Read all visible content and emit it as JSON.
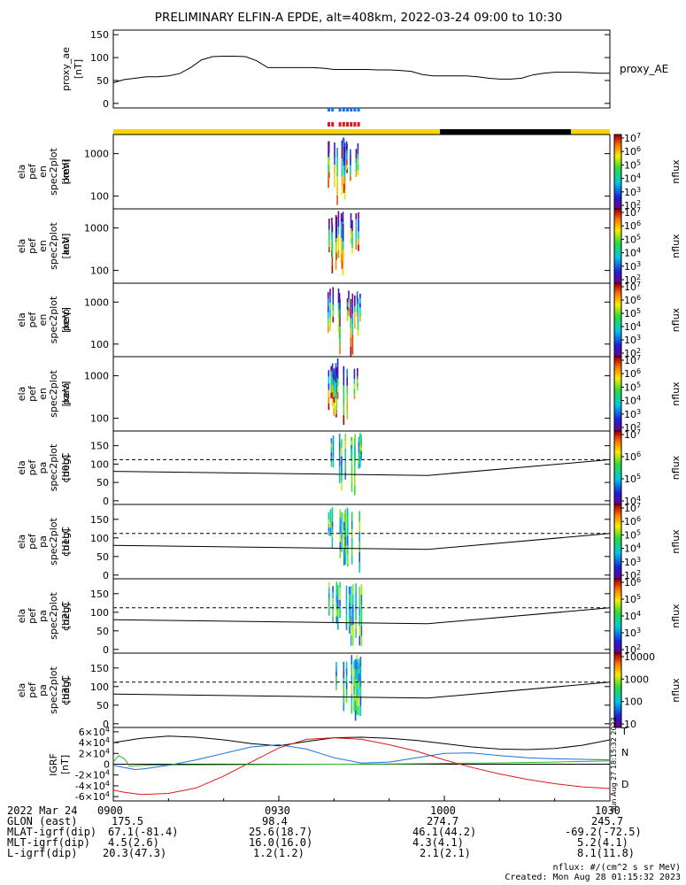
{
  "title": "PRELIMINARY ELFIN-A EPDE, alt=408km, 2022-03-24 09:00 to 10:30",
  "colors": {
    "black": "#000000",
    "yellow": "#f5d800",
    "blue": "#1e6fe0",
    "red": "#e01818",
    "green": "#22bb22",
    "ae": "#000000"
  },
  "chart_data": [
    {
      "type": "line",
      "name": "proxy_ae",
      "ylabel": "proxy_ae [nT]",
      "legend": "proxy_AE",
      "ylim": [
        -10,
        160
      ],
      "yticks": [
        "0",
        "50",
        "100",
        "150"
      ],
      "x": [
        0,
        2,
        4,
        6,
        8,
        10,
        12,
        14,
        16,
        18,
        20,
        22,
        24,
        26,
        28,
        30,
        32,
        34,
        36,
        38,
        40,
        42,
        44,
        46,
        48,
        50,
        52,
        54,
        56,
        58,
        60,
        62,
        64,
        66,
        68,
        70,
        72,
        74,
        76,
        78,
        80,
        82,
        84,
        86,
        88,
        90
      ],
      "y": [
        45,
        52,
        55,
        58,
        58,
        60,
        65,
        78,
        95,
        102,
        103,
        103,
        102,
        93,
        78,
        78,
        78,
        78,
        78,
        77,
        74,
        74,
        74,
        74,
        73,
        73,
        72,
        70,
        63,
        60,
        60,
        60,
        60,
        58,
        55,
        53,
        53,
        55,
        62,
        66,
        68,
        68,
        68,
        67,
        66,
        66
      ]
    },
    {
      "type": "heatmap",
      "name": "ela_pef_en_spec2plot_omni",
      "ylabel": "ela pef en spec2plot omni [keV]",
      "yticks": [
        "100",
        "1000"
      ],
      "zlabel": "nflux",
      "zticks": [
        "10^2",
        "10^3",
        "10^4",
        "10^5",
        "10^6",
        "10^7"
      ]
    },
    {
      "type": "heatmap",
      "name": "ela_pef_en_spec2plot_anti",
      "ylabel": "ela pef en spec2plot anti [keV]",
      "yticks": [
        "100",
        "1000"
      ],
      "zlabel": "nflux",
      "zticks": [
        "10^2",
        "10^3",
        "10^4",
        "10^5",
        "10^6",
        "10^7"
      ]
    },
    {
      "type": "heatmap",
      "name": "ela_pef_en_spec2plot_perp",
      "ylabel": "ela pef en spec2plot perp [keV]",
      "yticks": [
        "100",
        "1000"
      ],
      "zlabel": "nflux",
      "zticks": [
        "10^2",
        "10^3",
        "10^4",
        "10^5",
        "10^6",
        "10^7"
      ]
    },
    {
      "type": "heatmap",
      "name": "ela_pef_en_spec2plot_para",
      "ylabel": "ela pef en spec2plot para [keV]",
      "yticks": [
        "100",
        "1000"
      ],
      "zlabel": "nflux",
      "zticks": [
        "10^2",
        "10^3",
        "10^4",
        "10^5",
        "10^6",
        "10^7"
      ]
    },
    {
      "type": "heatmap",
      "name": "ela_pef_pa_spec2plot_ch0LC",
      "ylabel": "ela pef pa spec2plot ch0LC [deg]",
      "ylim": [
        -10,
        190
      ],
      "yticks": [
        "0",
        "50",
        "100",
        "150"
      ],
      "zlabel": "nflux",
      "zticks": [
        "10^4",
        "10^5",
        "10^6",
        "10^7"
      ],
      "lc_solid": [
        [
          0,
          80
        ],
        [
          57,
          69
        ],
        [
          90,
          112
        ]
      ],
      "lc_dashed": 112
    },
    {
      "type": "heatmap",
      "name": "ela_pef_pa_spec2plot_ch1LC",
      "ylabel": "ela pef pa spec2plot ch1LC [deg]",
      "ylim": [
        -10,
        190
      ],
      "yticks": [
        "0",
        "50",
        "100",
        "150"
      ],
      "zlabel": "nflux",
      "zticks": [
        "10^2",
        "10^3",
        "10^4",
        "10^5",
        "10^6",
        "10^7"
      ],
      "lc_solid": [
        [
          0,
          80
        ],
        [
          57,
          69
        ],
        [
          90,
          112
        ]
      ],
      "lc_dashed": 112
    },
    {
      "type": "heatmap",
      "name": "ela_pef_pa_spec2plot_ch2LC",
      "ylabel": "ela pef pa spec2plot ch2LC [deg]",
      "ylim": [
        -10,
        190
      ],
      "yticks": [
        "0",
        "50",
        "100",
        "150"
      ],
      "zlabel": "nflux",
      "zticks": [
        "10^2",
        "10^3",
        "10^4",
        "10^5",
        "10^6"
      ],
      "lc_solid": [
        [
          0,
          80
        ],
        [
          57,
          69
        ],
        [
          90,
          112
        ]
      ],
      "lc_dashed": 112
    },
    {
      "type": "heatmap",
      "name": "ela_pef_pa_spec2plot_ch3LC",
      "ylabel": "ela pef pa spec2plot ch3LC [deg]",
      "ylim": [
        -10,
        190
      ],
      "yticks": [
        "0",
        "50",
        "100",
        "150"
      ],
      "zlabel": "nflux",
      "zticks": [
        "10",
        "100",
        "1000",
        "10000"
      ],
      "lc_solid": [
        [
          0,
          80
        ],
        [
          57,
          69
        ],
        [
          90,
          112
        ]
      ],
      "lc_dashed": 112
    },
    {
      "type": "line",
      "name": "IGRF",
      "ylabel": "IGRF [nT]",
      "ylim": [
        -68000,
        68000
      ],
      "yticks": [
        "-6×10^4",
        "-4×10^4",
        "-2×10^4",
        "0",
        "2×10^4",
        "4×10^4",
        "6×10^4"
      ],
      "series": [
        {
          "name": "T",
          "color": "black",
          "x": [
            0,
            5,
            10,
            15,
            20,
            25,
            30,
            35,
            40,
            45,
            50,
            55,
            60,
            65,
            70,
            75,
            80,
            85,
            90
          ],
          "y": [
            40000,
            48000,
            52000,
            50000,
            45000,
            38000,
            34000,
            42000,
            49000,
            50000,
            48000,
            44000,
            38000,
            32000,
            28000,
            27000,
            29000,
            35000,
            45000
          ]
        },
        {
          "name": "N",
          "color": "blue",
          "x": [
            0,
            2,
            4,
            6,
            10,
            15,
            20,
            25,
            30,
            35,
            40,
            45,
            50,
            55,
            60,
            65,
            70,
            75,
            80,
            85,
            90
          ],
          "y": [
            -2000,
            -6000,
            -10000,
            -8000,
            -2000,
            8000,
            20000,
            32000,
            36000,
            28000,
            12000,
            2000,
            4000,
            12000,
            20000,
            21000,
            16000,
            12000,
            10000,
            9000,
            8000
          ]
        },
        {
          "name": "D",
          "color": "red",
          "x": [
            0,
            2,
            5,
            10,
            15,
            20,
            25,
            30,
            35,
            40,
            45,
            50,
            55,
            60,
            65,
            70,
            75,
            80,
            85,
            90
          ],
          "y": [
            -48000,
            -52000,
            -56000,
            -54000,
            -44000,
            -22000,
            4000,
            30000,
            46000,
            49000,
            46000,
            36000,
            24000,
            8000,
            -6000,
            -18000,
            -28000,
            -36000,
            -42000,
            -45000
          ]
        },
        {
          "name": "green",
          "color": "green",
          "x": [
            0,
            1,
            2,
            3,
            4,
            6,
            10,
            20,
            30,
            40,
            50,
            60,
            70,
            80,
            90
          ],
          "y": [
            4000,
            16000,
            10000,
            -4000,
            -3000,
            -2000,
            -1500,
            -1000,
            -500,
            0,
            500,
            1500,
            2500,
            4000,
            6000
          ]
        }
      ],
      "legend": [
        "T",
        "N",
        "D"
      ]
    }
  ],
  "xaxis": {
    "date": "2022 Mar 24",
    "ticks": [
      "0900",
      "0930",
      "1000",
      "1030"
    ],
    "rows": [
      {
        "label": "GLON (east)",
        "values": [
          "175.5",
          "98.4",
          "274.7",
          "245.7"
        ]
      },
      {
        "label": "MLAT-igrf(dip)",
        "values": [
          "67.1(-81.4)",
          "25.6(18.7)",
          "46.1(44.2)",
          "-69.2(-72.5)"
        ]
      },
      {
        "label": "MLT-igrf(dip)",
        "values": [
          "4.5(2.6)",
          "16.0(16.0)",
          "4.3(4.1)",
          "5.2(4.1)"
        ]
      },
      {
        "label": "L-igrf(dip)",
        "values": [
          "20.3(47.3)",
          "1.2(1.2)",
          "2.1(2.1)",
          "8.1(11.8)"
        ]
      }
    ]
  },
  "footer": {
    "units": "nflux: #/(cm^2 s sr MeV)",
    "created": "Created: Mon Aug 28 01:15:32 2023",
    "side": "Sun Aug 27 18:15:32 2023"
  }
}
